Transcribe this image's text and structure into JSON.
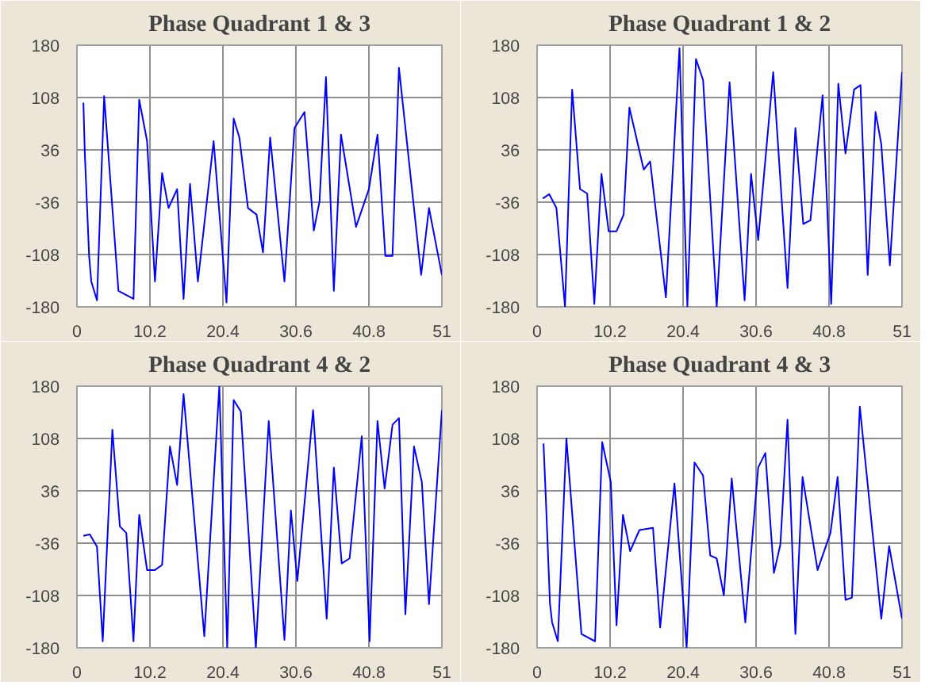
{
  "chart_data": [
    {
      "type": "line",
      "title": "Phase Quadrant 1 & 3",
      "xlim": [
        0,
        51
      ],
      "ylim": [
        -180,
        180
      ],
      "xticks": [
        0,
        10.2,
        20.4,
        30.6,
        40.8,
        51
      ],
      "yticks": [
        -180,
        -108,
        -36,
        36,
        108,
        180
      ],
      "grid": true,
      "series": [
        {
          "color": "#0000ff",
          "x": [
            0.9,
            1.1,
            1.7,
            2.0,
            2.8,
            3.8,
            5.8,
            7.9,
            8.7,
            9.8,
            10.9,
            11.9,
            12.8,
            14.0,
            14.9,
            15.8,
            16.9,
            19.1,
            20.9,
            21.9,
            22.7,
            23.9,
            25.1,
            26.0,
            27.0,
            29.0,
            30.4,
            31.8,
            33.1,
            33.9,
            34.8,
            35.9,
            36.9,
            39.0,
            40.8,
            42.0,
            43.1,
            44.1,
            45.0,
            48.1,
            49.2,
            51.0
          ],
          "values": [
            101,
            31,
            -110,
            -145,
            -171,
            110,
            -158,
            -169,
            105,
            48,
            -145,
            4,
            -44,
            -18,
            -169,
            -11,
            -145,
            48,
            -174,
            79,
            53,
            -44,
            -53,
            -105,
            53,
            -145,
            66,
            88,
            -75,
            -35,
            136,
            -158,
            57,
            -70,
            -18,
            57,
            -110,
            -110,
            149,
            -136,
            -44,
            -136
          ]
        }
      ]
    },
    {
      "type": "line",
      "title": "Phase Quadrant 1 & 2",
      "xlim": [
        0,
        51
      ],
      "ylim": [
        -180,
        180
      ],
      "xticks": [
        0,
        10.2,
        20.4,
        30.6,
        40.8,
        51
      ],
      "yticks": [
        -180,
        -108,
        -36,
        36,
        108,
        180
      ],
      "grid": true,
      "series": [
        {
          "color": "#0000ff",
          "x": [
            0.8,
            1.7,
            2.7,
            3.9,
            4.9,
            6.0,
            7.0,
            8.0,
            9.0,
            10.0,
            11.1,
            12.1,
            12.9,
            14.9,
            15.8,
            18.0,
            19.9,
            21.0,
            22.2,
            23.2,
            25.1,
            26.9,
            29.0,
            29.9,
            30.9,
            33.0,
            35.0,
            36.1,
            37.2,
            38.2,
            39.9,
            41.1,
            42.1,
            43.1,
            44.3,
            45.2,
            46.2,
            47.3,
            48.1,
            49.3,
            51.0
          ],
          "values": [
            -31,
            -25,
            -44,
            -180,
            119,
            -18,
            -24,
            -176,
            3,
            -76,
            -76,
            -53,
            94,
            9,
            20,
            -167,
            176,
            -180,
            161,
            132,
            -180,
            129,
            -171,
            3,
            -88,
            143,
            -154,
            66,
            -66,
            -61,
            111,
            -176,
            127,
            31,
            119,
            125,
            -136,
            88,
            44,
            -123,
            143
          ]
        }
      ]
    },
    {
      "type": "line",
      "title": "Phase Quadrant 4 & 2",
      "xlim": [
        0,
        51
      ],
      "ylim": [
        -180,
        180
      ],
      "xticks": [
        0,
        10.2,
        20.4,
        30.6,
        40.8,
        51
      ],
      "yticks": [
        -180,
        -108,
        -36,
        36,
        108,
        180
      ],
      "grid": true,
      "series": [
        {
          "color": "#0000ff",
          "x": [
            0.9,
            1.8,
            2.8,
            3.6,
            4.95,
            6.0,
            6.9,
            7.9,
            8.7,
            9.8,
            10.9,
            11.9,
            13.0,
            14.0,
            14.9,
            17.8,
            19.9,
            21.0,
            21.9,
            22.9,
            25.0,
            26.8,
            29.0,
            29.9,
            30.8,
            33.0,
            34.9,
            35.9,
            37.0,
            38.1,
            39.8,
            40.9,
            42.0,
            43.0,
            44.1,
            45.0,
            45.9,
            47.1,
            48.2,
            49.2,
            51.0
          ],
          "values": [
            -26,
            -24,
            -41,
            -171,
            120,
            -13,
            -22,
            -171,
            3,
            -73,
            -73,
            -66,
            97,
            44,
            169,
            -164,
            180,
            -180,
            161,
            145,
            -180,
            132,
            -169,
            9,
            -88,
            147,
            -140,
            68,
            -64,
            -57,
            111,
            -171,
            132,
            39,
            127,
            136,
            -134,
            97,
            48,
            -120,
            147
          ]
        }
      ]
    },
    {
      "type": "line",
      "title": "Phase Quadrant 4 & 3",
      "xlim": [
        0,
        51
      ],
      "ylim": [
        -180,
        180
      ],
      "xticks": [
        0,
        10.2,
        20.4,
        30.6,
        40.8,
        51
      ],
      "yticks": [
        -180,
        -108,
        -36,
        36,
        108,
        180
      ],
      "grid": true,
      "series": [
        {
          "color": "#0000ff",
          "x": [
            0.9,
            1.2,
            1.8,
            2.1,
            2.9,
            4.1,
            6.2,
            8.1,
            9.1,
            10.3,
            11.1,
            12.0,
            13.0,
            14.3,
            16.2,
            17.2,
            19.2,
            20.9,
            22.0,
            23.2,
            24.2,
            25.1,
            26.1,
            27.2,
            29.1,
            30.9,
            31.9,
            33.1,
            34.0,
            35.0,
            36.1,
            37.1,
            39.2,
            41.0,
            42.0,
            43.1,
            44.0,
            45.1,
            48.1,
            49.2,
            51.0
          ],
          "values": [
            101,
            31,
            -119,
            -145,
            -171,
            108,
            -161,
            -171,
            103,
            48,
            -149,
            3,
            -47,
            -18,
            -15,
            -152,
            46,
            -180,
            75,
            57,
            -53,
            -57,
            -108,
            53,
            -145,
            68,
            88,
            -77,
            -38,
            134,
            -161,
            55,
            -73,
            -22,
            55,
            -114,
            -111,
            152,
            -140,
            -40,
            -140
          ]
        }
      ]
    }
  ]
}
